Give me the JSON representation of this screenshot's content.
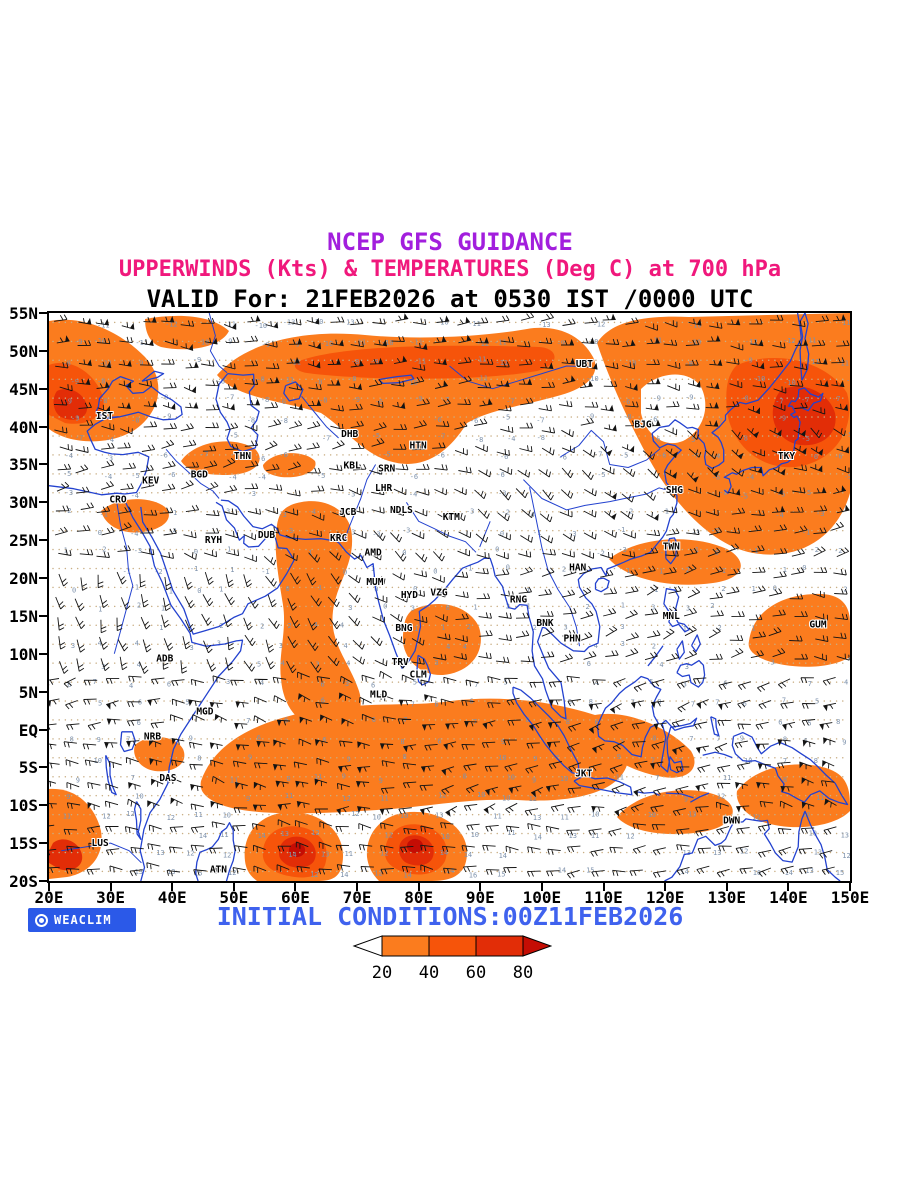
{
  "header": {
    "line1": "NCEP GFS GUIDANCE",
    "line1_color": "#A21EDD",
    "line2": "UPPERWINDS (Kts) & TEMPERATURES (Deg C) at 700 hPa",
    "line2_color": "#F0187C",
    "line3": "VALID For: 21FEB2026 at 0530 IST /0000 UTC",
    "line3_color": "#000000"
  },
  "map": {
    "frame_color": "#000000",
    "coast_color": "#2342CF",
    "lat_ticks": [
      "55N",
      "50N",
      "45N",
      "40N",
      "35N",
      "30N",
      "25N",
      "20N",
      "15N",
      "10N",
      "5N",
      "EQ",
      "5S",
      "10S",
      "15S",
      "20S"
    ],
    "lon_ticks": [
      "20E",
      "30E",
      "40E",
      "50E",
      "60E",
      "70E",
      "80E",
      "90E",
      "100E",
      "110E",
      "120E",
      "130E",
      "140E",
      "150E"
    ],
    "shading_levels": [
      20,
      40,
      60,
      80
    ],
    "shading_colors": [
      "#FB7C1E",
      "#F6540A",
      "#E22D07",
      "#C40D04"
    ],
    "texture": {
      "dot_color": "#C9AE84",
      "number_color": "#7E92AC",
      "barb_color": "#141414"
    },
    "stations": [
      {
        "code": "IST",
        "lon": 29.0,
        "lat": 41.0
      },
      {
        "code": "UBT",
        "lon": 106.9,
        "lat": 47.9
      },
      {
        "code": "THN",
        "lon": 51.4,
        "lat": 35.7
      },
      {
        "code": "BGD",
        "lon": 44.4,
        "lat": 33.3
      },
      {
        "code": "KEV",
        "lon": 36.5,
        "lat": 32.5
      },
      {
        "code": "CRO",
        "lon": 31.2,
        "lat": 30.0
      },
      {
        "code": "DHB",
        "lon": 68.8,
        "lat": 38.6
      },
      {
        "code": "HTN",
        "lon": 79.9,
        "lat": 37.1
      },
      {
        "code": "KBL",
        "lon": 69.2,
        "lat": 34.5
      },
      {
        "code": "SRN",
        "lon": 74.8,
        "lat": 34.1
      },
      {
        "code": "LHR",
        "lon": 74.3,
        "lat": 31.5
      },
      {
        "code": "JCB",
        "lon": 68.5,
        "lat": 28.3
      },
      {
        "code": "NDLS",
        "lon": 77.2,
        "lat": 28.6
      },
      {
        "code": "KTM",
        "lon": 85.3,
        "lat": 27.7
      },
      {
        "code": "RYH",
        "lon": 46.7,
        "lat": 24.6
      },
      {
        "code": "DUB",
        "lon": 55.3,
        "lat": 25.3
      },
      {
        "code": "KRC",
        "lon": 67.0,
        "lat": 24.9
      },
      {
        "code": "AMD",
        "lon": 72.6,
        "lat": 23.0
      },
      {
        "code": "MUM",
        "lon": 72.9,
        "lat": 19.1
      },
      {
        "code": "HYD",
        "lon": 78.5,
        "lat": 17.4
      },
      {
        "code": "VZG",
        "lon": 83.3,
        "lat": 17.7
      },
      {
        "code": "RNG",
        "lon": 96.2,
        "lat": 16.8
      },
      {
        "code": "BNK",
        "lon": 100.5,
        "lat": 13.7
      },
      {
        "code": "PHN",
        "lon": 104.9,
        "lat": 11.6
      },
      {
        "code": "MNL",
        "lon": 121.0,
        "lat": 14.6
      },
      {
        "code": "GUM",
        "lon": 144.8,
        "lat": 13.5
      },
      {
        "code": "TWN",
        "lon": 121.0,
        "lat": 23.8
      },
      {
        "code": "HAN",
        "lon": 105.8,
        "lat": 21.0
      },
      {
        "code": "SHG",
        "lon": 121.5,
        "lat": 31.2
      },
      {
        "code": "BJG",
        "lon": 116.4,
        "lat": 39.9
      },
      {
        "code": "TKY",
        "lon": 139.7,
        "lat": 35.7
      },
      {
        "code": "BNG",
        "lon": 77.6,
        "lat": 13.0
      },
      {
        "code": "TRV",
        "lon": 77.0,
        "lat": 8.5
      },
      {
        "code": "CLM",
        "lon": 79.9,
        "lat": 6.9
      },
      {
        "code": "MLD",
        "lon": 73.5,
        "lat": 4.2
      },
      {
        "code": "ADB",
        "lon": 38.8,
        "lat": 9.0
      },
      {
        "code": "MGD",
        "lon": 45.3,
        "lat": 2.0
      },
      {
        "code": "NRB",
        "lon": 36.8,
        "lat": -1.3
      },
      {
        "code": "DAS",
        "lon": 39.3,
        "lat": -6.8
      },
      {
        "code": "JKT",
        "lon": 106.8,
        "lat": -6.2
      },
      {
        "code": "DWN",
        "lon": 130.8,
        "lat": -12.4
      },
      {
        "code": "LUS",
        "lon": 28.3,
        "lat": -15.4
      },
      {
        "code": "ATN",
        "lon": 47.5,
        "lat": -18.9
      }
    ]
  },
  "footer": {
    "weaclim_label": "WEACLIM",
    "weaclim_bg": "#2B59E8",
    "initial_conditions": "INITIAL CONDITIONS:00Z11FEB2026",
    "initial_conditions_color": "#3F62EE",
    "legend": {
      "values": [
        "20",
        "40",
        "60",
        "80"
      ],
      "arrow_left_color": "#FFFFFF"
    }
  }
}
